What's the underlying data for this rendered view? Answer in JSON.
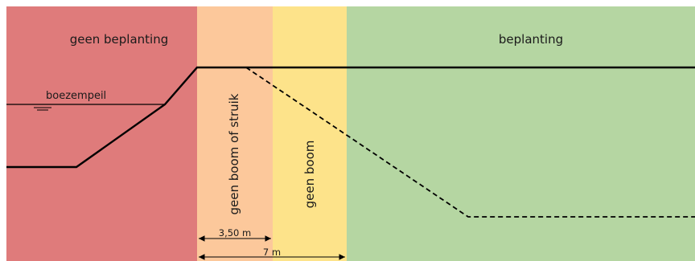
{
  "zones": {
    "no_planting": {
      "label": "geen beplanting",
      "color": "#df7b7b"
    },
    "no_tree_or_shrub": {
      "label": "geen boom of struik",
      "color": "#fcc89b"
    },
    "no_tree": {
      "label": "geen boom",
      "color": "#fde38a"
    },
    "planting": {
      "label": "beplanting",
      "color": "#b5d6a2"
    }
  },
  "water_level": {
    "label": "boezempeil"
  },
  "dimensions": {
    "inner": "3,50 m",
    "outer": "7 m"
  },
  "line_color": "#000000"
}
